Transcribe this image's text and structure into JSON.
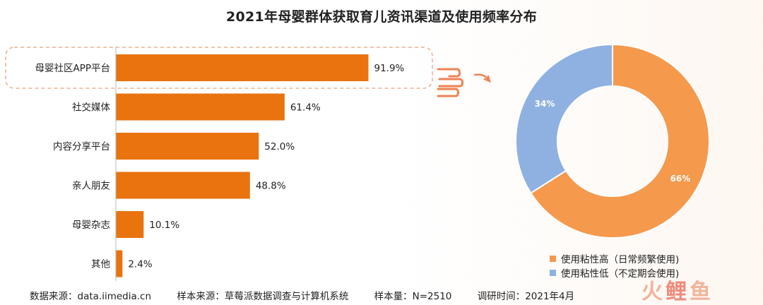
{
  "title": "2021年母婴群体获取育儿资讯渠道及使用频率分布",
  "colors": {
    "bar": "#e8730f",
    "highlight_border": "#e8a27a",
    "hand": "#ef8253",
    "pie_high": "#f5994d",
    "pie_low": "#8fb1e2"
  },
  "chart_data": [
    {
      "type": "bar",
      "orientation": "horizontal",
      "categories": [
        "母婴社区APP平台",
        "社交媒体",
        "内容分享平台",
        "亲人朋友",
        "母婴杂志",
        "其他"
      ],
      "values": [
        91.9,
        61.4,
        52.0,
        48.8,
        10.1,
        2.4
      ],
      "value_labels": [
        "91.9%",
        "61.4%",
        "52.0%",
        "48.8%",
        "10.1%",
        "2.4%"
      ],
      "xlim": [
        0,
        100
      ],
      "highlighted_category": "母婴社区APP平台",
      "grid": false
    },
    {
      "type": "pie",
      "style": "donut",
      "labels": [
        "使用粘性高（日常频繁使用)",
        "使用粘性低（不定期会使用)"
      ],
      "values": [
        66,
        34
      ],
      "value_labels": [
        "66%",
        "34%"
      ],
      "legend_position": "bottom"
    }
  ],
  "footer": {
    "data_source": "数据来源：data.iimedia.cn",
    "sample_source": "样本来源：草莓派数据调查与计算机系统",
    "sample_size": "样本量：N=2510",
    "survey_time": "调研时间：2021年4月"
  },
  "logo_text": [
    "火",
    "鲤",
    "鱼"
  ]
}
